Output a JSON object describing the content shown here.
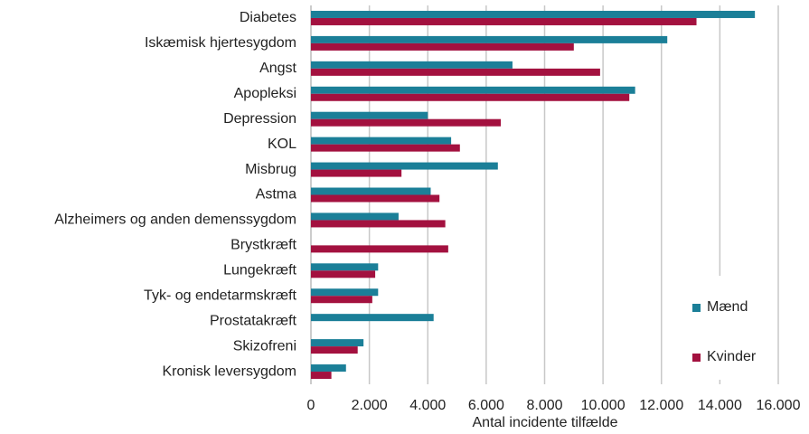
{
  "chart_data": {
    "type": "hbar",
    "x_label": "Antal incidente tilfælde",
    "categories": [
      "Diabetes",
      "Iskæmisk hjertesygdom",
      "Angst",
      "Apopleksi",
      "Depression",
      "KOL",
      "Misbrug",
      "Astma",
      "Alzheimers og anden demenssygdom",
      "Brystkræft",
      "Lungekræft",
      "Tyk- og endetarmskræft",
      "Prostatakræft",
      "Skizofreni",
      "Kronisk leversygdom"
    ],
    "series": [
      {
        "name": "Mænd",
        "color": "#1b7f98",
        "values": [
          15200,
          12200,
          6900,
          11100,
          4000,
          4800,
          6400,
          4100,
          3000,
          null,
          2300,
          2300,
          4200,
          1800,
          1200
        ]
      },
      {
        "name": "Kvinder",
        "color": "#a3113f",
        "values": [
          13200,
          9000,
          9900,
          10900,
          6500,
          5100,
          3100,
          4400,
          4600,
          4700,
          2200,
          2100,
          null,
          1600,
          700
        ]
      }
    ],
    "xlim": [
      0,
      16000
    ],
    "xticks": [
      0,
      {
        "value": 2000,
        "label": "2.000"
      },
      {
        "value": 4000,
        "label": "4.000"
      },
      {
        "value": 6000,
        "label": "6.000"
      },
      {
        "value": 8000,
        "label": "8.000"
      },
      {
        "value": 10000,
        "label": "10.000"
      },
      {
        "value": 12000,
        "label": "12.000"
      },
      {
        "value": 14000,
        "label": "14.000"
      },
      {
        "value": 16000,
        "label": "16.000"
      }
    ],
    "grid": true,
    "legend": "lower right"
  }
}
